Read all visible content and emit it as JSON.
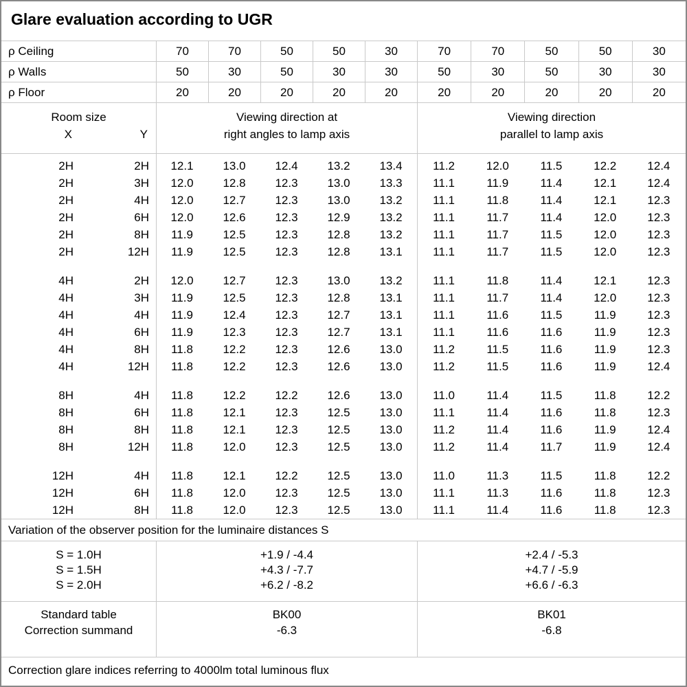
{
  "title": "Glare evaluation according to UGR",
  "colors": {
    "background": "#ffffff",
    "text": "#000000",
    "grid_line": "#c9c9c9",
    "outer_border": "#888888"
  },
  "header": {
    "rho_rows": [
      {
        "label": "ρ Ceiling",
        "values": [
          "70",
          "70",
          "50",
          "50",
          "30",
          "70",
          "70",
          "50",
          "50",
          "30"
        ]
      },
      {
        "label": "ρ Walls",
        "values": [
          "50",
          "30",
          "50",
          "30",
          "30",
          "50",
          "30",
          "50",
          "30",
          "30"
        ]
      },
      {
        "label": "ρ Floor",
        "values": [
          "20",
          "20",
          "20",
          "20",
          "20",
          "20",
          "20",
          "20",
          "20",
          "20"
        ]
      }
    ],
    "room_size_label": "Room size",
    "x_label": "X",
    "y_label": "Y",
    "group1": {
      "line1": "Viewing direction at",
      "line2": "right angles to lamp axis"
    },
    "group2": {
      "line1": "Viewing direction",
      "line2": "parallel to lamp axis"
    }
  },
  "blocks": [
    {
      "rows": [
        {
          "x": "2H",
          "y": "2H",
          "left": [
            "12.1",
            "13.0",
            "12.4",
            "13.2",
            "13.4"
          ],
          "right": [
            "11.2",
            "12.0",
            "11.5",
            "12.2",
            "12.4"
          ]
        },
        {
          "x": "2H",
          "y": "3H",
          "left": [
            "12.0",
            "12.8",
            "12.3",
            "13.0",
            "13.3"
          ],
          "right": [
            "11.1",
            "11.9",
            "11.4",
            "12.1",
            "12.4"
          ]
        },
        {
          "x": "2H",
          "y": "4H",
          "left": [
            "12.0",
            "12.7",
            "12.3",
            "13.0",
            "13.2"
          ],
          "right": [
            "11.1",
            "11.8",
            "11.4",
            "12.1",
            "12.3"
          ]
        },
        {
          "x": "2H",
          "y": "6H",
          "left": [
            "12.0",
            "12.6",
            "12.3",
            "12.9",
            "13.2"
          ],
          "right": [
            "11.1",
            "11.7",
            "11.4",
            "12.0",
            "12.3"
          ]
        },
        {
          "x": "2H",
          "y": "8H",
          "left": [
            "11.9",
            "12.5",
            "12.3",
            "12.8",
            "13.2"
          ],
          "right": [
            "11.1",
            "11.7",
            "11.5",
            "12.0",
            "12.3"
          ]
        },
        {
          "x": "2H",
          "y": "12H",
          "left": [
            "11.9",
            "12.5",
            "12.3",
            "12.8",
            "13.1"
          ],
          "right": [
            "11.1",
            "11.7",
            "11.5",
            "12.0",
            "12.3"
          ]
        }
      ]
    },
    {
      "rows": [
        {
          "x": "4H",
          "y": "2H",
          "left": [
            "12.0",
            "12.7",
            "12.3",
            "13.0",
            "13.2"
          ],
          "right": [
            "11.1",
            "11.8",
            "11.4",
            "12.1",
            "12.3"
          ]
        },
        {
          "x": "4H",
          "y": "3H",
          "left": [
            "11.9",
            "12.5",
            "12.3",
            "12.8",
            "13.1"
          ],
          "right": [
            "11.1",
            "11.7",
            "11.4",
            "12.0",
            "12.3"
          ]
        },
        {
          "x": "4H",
          "y": "4H",
          "left": [
            "11.9",
            "12.4",
            "12.3",
            "12.7",
            "13.1"
          ],
          "right": [
            "11.1",
            "11.6",
            "11.5",
            "11.9",
            "12.3"
          ]
        },
        {
          "x": "4H",
          "y": "6H",
          "left": [
            "11.9",
            "12.3",
            "12.3",
            "12.7",
            "13.1"
          ],
          "right": [
            "11.1",
            "11.6",
            "11.6",
            "11.9",
            "12.3"
          ]
        },
        {
          "x": "4H",
          "y": "8H",
          "left": [
            "11.8",
            "12.2",
            "12.3",
            "12.6",
            "13.0"
          ],
          "right": [
            "11.2",
            "11.5",
            "11.6",
            "11.9",
            "12.3"
          ]
        },
        {
          "x": "4H",
          "y": "12H",
          "left": [
            "11.8",
            "12.2",
            "12.3",
            "12.6",
            "13.0"
          ],
          "right": [
            "11.2",
            "11.5",
            "11.6",
            "11.9",
            "12.4"
          ]
        }
      ]
    },
    {
      "rows": [
        {
          "x": "8H",
          "y": "4H",
          "left": [
            "11.8",
            "12.2",
            "12.2",
            "12.6",
            "13.0"
          ],
          "right": [
            "11.0",
            "11.4",
            "11.5",
            "11.8",
            "12.2"
          ]
        },
        {
          "x": "8H",
          "y": "6H",
          "left": [
            "11.8",
            "12.1",
            "12.3",
            "12.5",
            "13.0"
          ],
          "right": [
            "11.1",
            "11.4",
            "11.6",
            "11.8",
            "12.3"
          ]
        },
        {
          "x": "8H",
          "y": "8H",
          "left": [
            "11.8",
            "12.1",
            "12.3",
            "12.5",
            "13.0"
          ],
          "right": [
            "11.2",
            "11.4",
            "11.6",
            "11.9",
            "12.4"
          ]
        },
        {
          "x": "8H",
          "y": "12H",
          "left": [
            "11.8",
            "12.0",
            "12.3",
            "12.5",
            "13.0"
          ],
          "right": [
            "11.2",
            "11.4",
            "11.7",
            "11.9",
            "12.4"
          ]
        }
      ]
    },
    {
      "rows": [
        {
          "x": "12H",
          "y": "4H",
          "left": [
            "11.8",
            "12.1",
            "12.2",
            "12.5",
            "13.0"
          ],
          "right": [
            "11.0",
            "11.3",
            "11.5",
            "11.8",
            "12.2"
          ]
        },
        {
          "x": "12H",
          "y": "6H",
          "left": [
            "11.8",
            "12.0",
            "12.3",
            "12.5",
            "13.0"
          ],
          "right": [
            "11.1",
            "11.3",
            "11.6",
            "11.8",
            "12.3"
          ]
        },
        {
          "x": "12H",
          "y": "8H",
          "left": [
            "11.8",
            "12.0",
            "12.3",
            "12.5",
            "13.0"
          ],
          "right": [
            "11.1",
            "11.4",
            "11.6",
            "11.8",
            "12.3"
          ]
        }
      ]
    }
  ],
  "variation_note": "Variation of the observer position for the luminaire distances S",
  "variation_rows": [
    {
      "label": "S = 1.0H",
      "left": "+1.9 / -4.4",
      "right": "+2.4 / -5.3"
    },
    {
      "label": "S = 1.5H",
      "left": "+4.3 / -7.7",
      "right": "+4.7 / -5.9"
    },
    {
      "label": "S = 2.0H",
      "left": "+6.2 / -8.2",
      "right": "+6.6 / -6.3"
    }
  ],
  "summary": {
    "standard_table_label": "Standard table",
    "correction_summand_label": "Correction summand",
    "bk_left": "BK00",
    "bk_right": "BK01",
    "correction_left": "-6.3",
    "correction_right": "-6.8"
  },
  "footer_note": "Correction glare indices referring to 4000lm total luminous flux"
}
